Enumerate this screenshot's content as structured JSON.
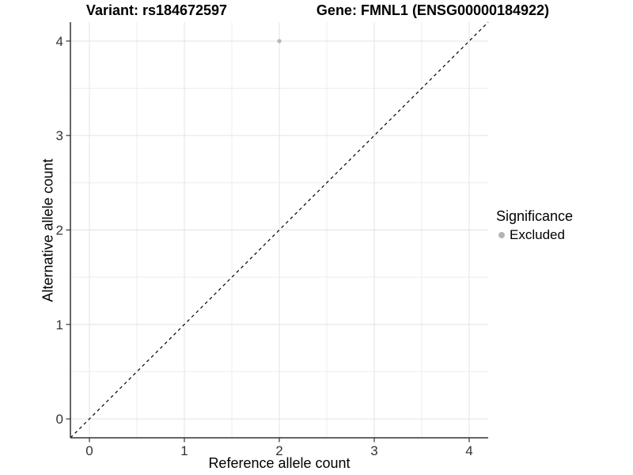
{
  "chart_data": {
    "type": "scatter",
    "titles": {
      "left": "Variant: rs184672597",
      "right": "Gene: FMNL1 (ENSG00000184922)"
    },
    "xlabel": "Reference allele count",
    "ylabel": "Alternative allele count",
    "xlim": [
      -0.2,
      4.2
    ],
    "ylim": [
      -0.2,
      4.2
    ],
    "x_ticks": [
      0,
      1,
      2,
      3,
      4
    ],
    "y_ticks": [
      0,
      1,
      2,
      3,
      4
    ],
    "x_minor_ticks": [
      0.5,
      1.5,
      2.5,
      3.5
    ],
    "y_minor_ticks": [
      0.5,
      1.5,
      2.5,
      3.5
    ],
    "series": [
      {
        "name": "Excluded",
        "color": "#b5b5b5",
        "points": [
          {
            "x": 2,
            "y": 4
          }
        ]
      }
    ],
    "identity_line": {
      "style": "dashed",
      "color": "#000000",
      "x1": -0.2,
      "y1": -0.2,
      "x2": 4.2,
      "y2": 4.2
    },
    "legend": {
      "position": "right",
      "title": "Significance",
      "entries": [
        {
          "label": "Excluded",
          "color": "#b5b5b5"
        }
      ]
    },
    "grid": {
      "on": true,
      "major_color": "#e3e3e3",
      "minor_color": "#eeeeee"
    },
    "axis_color": "#333333",
    "tick_label_color": "#333333",
    "background": "#ffffff"
  }
}
